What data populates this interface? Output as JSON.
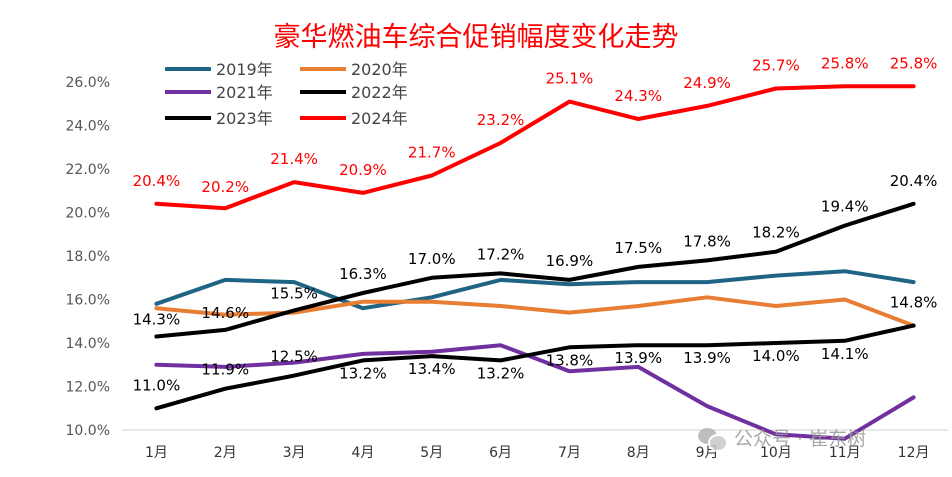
{
  "chart_data": {
    "type": "line",
    "title": "豪华燃油车综合促销幅度变化走势",
    "categories": [
      "1月",
      "2月",
      "3月",
      "4月",
      "5月",
      "6月",
      "7月",
      "8月",
      "9月",
      "10月",
      "11月",
      "12月"
    ],
    "ylim": [
      10,
      26
    ],
    "yticks": [
      "10.0%",
      "12.0%",
      "14.0%",
      "16.0%",
      "18.0%",
      "20.0%",
      "22.0%",
      "24.0%",
      "26.0%"
    ],
    "grid": false,
    "legend_position": "top-left",
    "series": [
      {
        "name": "2019年",
        "color": "#1f6484",
        "values": [
          15.8,
          16.9,
          16.8,
          15.6,
          16.1,
          16.9,
          16.7,
          16.8,
          16.8,
          17.1,
          17.3,
          16.8
        ]
      },
      {
        "name": "2020年",
        "color": "#e87d34",
        "values": [
          15.6,
          15.3,
          15.4,
          15.9,
          15.9,
          15.7,
          15.4,
          15.7,
          16.1,
          15.7,
          16.0,
          14.8
        ]
      },
      {
        "name": "2021年",
        "color": "#7030a0",
        "values": [
          13.0,
          12.9,
          13.1,
          13.5,
          13.6,
          13.9,
          12.7,
          12.9,
          11.1,
          9.8,
          9.6,
          11.5
        ]
      },
      {
        "name": "2022年",
        "color": "#000000",
        "values": [
          14.3,
          14.6,
          15.5,
          16.3,
          17.0,
          17.2,
          16.9,
          17.5,
          17.8,
          18.2,
          19.4,
          20.4
        ],
        "labels": [
          "14.3%",
          "14.6%",
          "15.5%",
          "16.3%",
          "17.0%",
          "17.2%",
          "16.9%",
          "17.5%",
          "17.8%",
          "18.2%",
          "19.4%",
          "20.4%"
        ]
      },
      {
        "name": "2023年",
        "color": "#000000",
        "values": [
          11.0,
          11.9,
          12.5,
          13.2,
          13.4,
          13.2,
          13.8,
          13.9,
          13.9,
          14.0,
          14.1,
          14.8
        ],
        "labels": [
          "11.0%",
          "11.9%",
          "12.5%",
          "13.2%",
          "13.4%",
          "13.2%",
          "13.8%",
          "13.9%",
          "13.9%",
          "14.0%",
          "14.1%",
          "14.8%"
        ]
      },
      {
        "name": "2024年",
        "color": "#ff0000",
        "values": [
          20.4,
          20.2,
          21.4,
          20.9,
          21.7,
          23.2,
          25.1,
          24.3,
          24.9,
          25.7,
          25.8,
          25.8
        ],
        "labels": [
          "20.4%",
          "20.2%",
          "21.4%",
          "20.9%",
          "21.7%",
          "23.2%",
          "25.1%",
          "24.3%",
          "24.9%",
          "25.7%",
          "25.8%",
          "25.8%"
        ]
      }
    ]
  },
  "watermark": {
    "text": "公众号 · 崔东树",
    "icon": "wechat-icon"
  }
}
